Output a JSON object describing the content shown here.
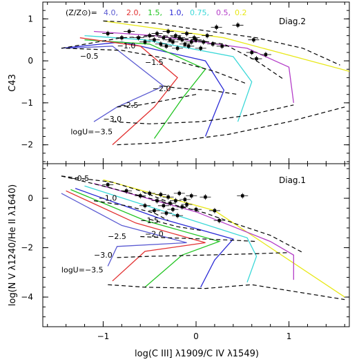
{
  "figure": {
    "xlabel": "log(C III] λ1909/C IV λ1549)",
    "legend_prefix": "(Z/Z⊙)=",
    "legend_entries": [
      {
        "label": "4.0,",
        "color": "#5a5ad2"
      },
      {
        "label": "2.0,",
        "color": "#e23030"
      },
      {
        "label": "1.5,",
        "color": "#22c422"
      },
      {
        "label": "1.0,",
        "color": "#2a2ad6"
      },
      {
        "label": "0.75,",
        "color": "#3ad8d8"
      },
      {
        "label": "0.5,",
        "color": "#b43cc8"
      },
      {
        "label": "0.2",
        "color": "#e8e818"
      }
    ]
  },
  "chart_data": [
    {
      "type": "line",
      "title": "Diag.2",
      "ylabel": "C43",
      "xlim": [
        -1.65,
        1.65
      ],
      "ylim": [
        -2.45,
        1.4
      ],
      "xticks": [
        -1,
        0,
        1
      ],
      "xtick_labels": [
        "",
        "",
        ""
      ],
      "yticks": [
        -2,
        -1,
        0,
        1
      ],
      "ytick_labels": [
        "−2",
        "−1",
        "0",
        "1"
      ],
      "logU_labels": [
        {
          "text": "−0.5",
          "x": -1.25,
          "y": 0.05
        },
        {
          "text": "−1.0",
          "x": -0.85,
          "y": 0.3
        },
        {
          "text": "−1.5",
          "x": -0.55,
          "y": -0.1
        },
        {
          "text": "−2.0",
          "x": -0.47,
          "y": -0.72
        },
        {
          "text": "−2.5",
          "x": -0.82,
          "y": -1.12
        },
        {
          "text": "−3.0",
          "x": -1.0,
          "y": -1.45
        },
        {
          "text": "logU=−3.5",
          "x": -1.35,
          "y": -1.75
        }
      ],
      "series": [
        {
          "color": "#e8e818",
          "style": "solid",
          "x": [
            -1.0,
            0.3,
            1.65
          ],
          "y": [
            0.95,
            0.55,
            -0.25
          ]
        },
        {
          "color": "#b43cc8",
          "style": "solid",
          "x": [
            -1.1,
            -0.45,
            0.55,
            1.0,
            1.05
          ],
          "y": [
            0.7,
            0.6,
            0.3,
            -0.15,
            -1.0
          ]
        },
        {
          "color": "#3ad8d8",
          "style": "solid",
          "x": [
            -1.2,
            -0.55,
            0.4,
            0.6,
            0.45
          ],
          "y": [
            0.6,
            0.5,
            0.1,
            -0.5,
            -1.45
          ]
        },
        {
          "color": "#2a2ad6",
          "style": "solid",
          "x": [
            -1.45,
            -0.8,
            0.1,
            0.3,
            0.1
          ],
          "y": [
            0.3,
            0.45,
            0.0,
            -0.7,
            -1.8
          ]
        },
        {
          "color": "#22c422",
          "style": "solid",
          "x": [
            -1.2,
            -0.5,
            0.1,
            -0.15,
            -0.45
          ],
          "y": [
            0.5,
            0.4,
            -0.2,
            -0.9,
            -1.85
          ]
        },
        {
          "color": "#e23030",
          "style": "solid",
          "x": [
            -1.25,
            -0.6,
            -0.2,
            -0.45,
            -0.9
          ],
          "y": [
            0.55,
            0.35,
            -0.4,
            -1.1,
            -2.0
          ]
        },
        {
          "color": "#5a5ad2",
          "style": "solid",
          "x": [
            -1.4,
            -0.9,
            -0.35,
            -0.85,
            -1.1
          ],
          "y": [
            0.3,
            0.35,
            -0.6,
            -1.1,
            -1.45
          ]
        },
        {
          "color": "#000000",
          "style": "dashed",
          "x": [
            -1.0,
            -0.45,
            0.0,
            0.65,
            1.15,
            1.55
          ],
          "y": [
            0.95,
            0.9,
            0.75,
            0.55,
            0.3,
            -0.1
          ]
        },
        {
          "color": "#000000",
          "style": "dashed",
          "x": [
            -1.45,
            -0.8,
            -0.35,
            0.3,
            0.65,
            0.95
          ],
          "y": [
            0.3,
            0.55,
            0.6,
            0.4,
            0.0,
            -0.45
          ]
        },
        {
          "color": "#000000",
          "style": "dashed",
          "x": [
            -1.4,
            -0.8,
            -0.3,
            0.2,
            0.55
          ],
          "y": [
            0.3,
            0.25,
            0.05,
            -0.25,
            -0.55
          ]
        },
        {
          "color": "#000000",
          "style": "dashed",
          "x": [
            -0.35,
            -0.2,
            0.15,
            0.3,
            0.45
          ],
          "y": [
            -0.6,
            -0.65,
            -0.7,
            -0.75,
            -0.8
          ]
        },
        {
          "color": "#000000",
          "style": "dashed",
          "x": [
            -0.85,
            -0.6,
            -0.35,
            0.0
          ],
          "y": [
            -1.1,
            -1.05,
            -0.95,
            -0.8
          ]
        },
        {
          "color": "#000000",
          "style": "dashed",
          "x": [
            -0.9,
            -0.5,
            0.05,
            0.55,
            1.05
          ],
          "y": [
            -1.45,
            -1.5,
            -1.45,
            -1.3,
            -1.05
          ]
        },
        {
          "color": "#000000",
          "style": "dashed",
          "x": [
            -0.85,
            -0.35,
            0.35,
            1.0,
            1.6
          ],
          "y": [
            -2.0,
            -1.95,
            -1.75,
            -1.45,
            -1.1
          ]
        }
      ],
      "points": {
        "x": [
          -0.95,
          -0.8,
          -0.72,
          -0.62,
          -0.55,
          -0.5,
          -0.45,
          -0.42,
          -0.38,
          -0.35,
          -0.32,
          -0.3,
          -0.28,
          -0.25,
          -0.22,
          -0.2,
          -0.18,
          -0.15,
          -0.12,
          -0.1,
          -0.08,
          -0.05,
          -0.02,
          0.0,
          0.05,
          0.08,
          0.12,
          0.18,
          0.22,
          0.28,
          0.45,
          0.6,
          0.65,
          0.75,
          0.62
        ],
        "y": [
          0.65,
          0.55,
          0.7,
          0.55,
          0.45,
          0.6,
          0.5,
          0.65,
          0.4,
          0.55,
          0.35,
          0.7,
          0.5,
          0.45,
          0.6,
          0.3,
          0.55,
          0.5,
          0.4,
          0.65,
          0.35,
          0.45,
          0.55,
          0.5,
          0.3,
          0.45,
          0.6,
          0.4,
          0.8,
          0.35,
          0.85,
          0.2,
          0.05,
          0.15,
          0.5
        ]
      }
    },
    {
      "type": "line",
      "title": "Diag.1",
      "ylabel": "log(N V λ1240/He II λ1640)",
      "xlim": [
        -1.65,
        1.65
      ],
      "ylim": [
        -5.2,
        1.4
      ],
      "xticks": [
        -1,
        0,
        1
      ],
      "xtick_labels": [
        "−1",
        "0",
        "1"
      ],
      "yticks": [
        -4,
        -2,
        0
      ],
      "ytick_labels": [
        "−4",
        "−2",
        "0"
      ],
      "logU_labels": [
        {
          "text": "−0.5",
          "x": -1.35,
          "y": 0.7
        },
        {
          "text": "−1.0",
          "x": -1.05,
          "y": -0.1
        },
        {
          "text": "−1.5",
          "x": -0.6,
          "y": -1.0
        },
        {
          "text": "−2.0",
          "x": -0.55,
          "y": -1.55
        },
        {
          "text": "−2.5",
          "x": -0.95,
          "y": -1.65
        },
        {
          "text": "−3.0",
          "x": -1.1,
          "y": -2.4
        },
        {
          "text": "logU=−3.5",
          "x": -1.45,
          "y": -3.0
        }
      ],
      "series": [
        {
          "color": "#e8e818",
          "style": "solid",
          "x": [
            -1.0,
            0.2,
            1.6
          ],
          "y": [
            0.75,
            -0.5,
            -4.0
          ]
        },
        {
          "color": "#b43cc8",
          "style": "solid",
          "x": [
            -1.1,
            0.0,
            0.8,
            1.05,
            1.05
          ],
          "y": [
            0.6,
            -0.55,
            -1.75,
            -2.3,
            -3.3
          ]
        },
        {
          "color": "#3ad8d8",
          "style": "solid",
          "x": [
            -1.2,
            -0.2,
            0.55,
            0.65,
            0.55
          ],
          "y": [
            0.5,
            -0.7,
            -1.6,
            -2.35,
            -3.4
          ]
        },
        {
          "color": "#2a2ad6",
          "style": "solid",
          "x": [
            -1.3,
            -0.4,
            0.4,
            0.2,
            0.05
          ],
          "y": [
            0.4,
            -0.8,
            -1.65,
            -2.5,
            -3.6
          ]
        },
        {
          "color": "#22c422",
          "style": "solid",
          "x": [
            -1.35,
            -0.55,
            0.25,
            -0.15,
            -0.55
          ],
          "y": [
            0.35,
            -0.9,
            -1.75,
            -2.3,
            -3.6
          ]
        },
        {
          "color": "#e23030",
          "style": "solid",
          "x": [
            -1.4,
            -0.65,
            0.1,
            -0.55,
            -0.9
          ],
          "y": [
            0.3,
            -1.0,
            -1.8,
            -2.15,
            -3.35
          ]
        },
        {
          "color": "#5a5ad2",
          "style": "solid",
          "x": [
            -1.45,
            -0.8,
            -0.1,
            -0.85,
            -0.95
          ],
          "y": [
            0.2,
            -1.1,
            -1.8,
            -1.95,
            -2.75
          ]
        },
        {
          "color": "#000000",
          "style": "dashed",
          "x": [
            -1.45,
            -0.9,
            -0.6,
            -0.3
          ],
          "y": [
            0.9,
            0.65,
            0.3,
            -0.15
          ]
        },
        {
          "color": "#000000",
          "style": "dashed",
          "x": [
            -1.1,
            -0.75,
            -0.45,
            -0.3
          ],
          "y": [
            -0.1,
            -0.3,
            -0.6,
            -0.9
          ]
        },
        {
          "color": "#000000",
          "style": "dashed",
          "x": [
            -0.5,
            -0.35,
            -0.2,
            0.05
          ],
          "y": [
            -0.85,
            -1.0,
            -1.15,
            -1.3
          ]
        },
        {
          "color": "#000000",
          "style": "dashed",
          "x": [
            -0.6,
            -0.3,
            0.1,
            0.4,
            0.65
          ],
          "y": [
            -1.55,
            -1.6,
            -1.65,
            -1.7,
            -1.75
          ]
        },
        {
          "color": "#000000",
          "style": "dashed",
          "x": [
            -0.85,
            -0.5,
            0.1,
            0.6,
            1.0
          ],
          "y": [
            -2.4,
            -2.35,
            -2.3,
            -2.25,
            -2.2
          ]
        },
        {
          "color": "#000000",
          "style": "dashed",
          "x": [
            -0.95,
            -0.55,
            0.1,
            0.6,
            1.6
          ],
          "y": [
            -3.5,
            -3.6,
            -3.65,
            -3.5,
            -4.1
          ]
        },
        {
          "color": "#000000",
          "style": "dashed",
          "x": [
            -1.45,
            -0.95,
            -0.5,
            0.1,
            0.4,
            0.8,
            1.15
          ],
          "y": [
            0.9,
            0.45,
            0.0,
            -0.6,
            -1.0,
            -1.5,
            -2.2
          ]
        }
      ],
      "points": {
        "x": [
          -0.95,
          -0.75,
          -0.6,
          -0.55,
          -0.5,
          -0.45,
          -0.42,
          -0.38,
          -0.35,
          -0.32,
          -0.3,
          -0.28,
          -0.25,
          -0.22,
          -0.2,
          -0.18,
          -0.15,
          -0.12,
          -0.1,
          -0.05,
          0.0,
          0.1,
          0.2,
          0.25,
          0.5
        ],
        "y": [
          0.55,
          0.3,
          0.1,
          -0.3,
          0.2,
          -0.5,
          -0.1,
          0.15,
          -0.3,
          -0.6,
          0.05,
          -0.2,
          -0.45,
          -0.1,
          -0.7,
          0.2,
          -0.35,
          -0.05,
          -0.25,
          0.1,
          -0.45,
          0.05,
          -0.5,
          -0.9,
          0.1
        ]
      }
    }
  ]
}
